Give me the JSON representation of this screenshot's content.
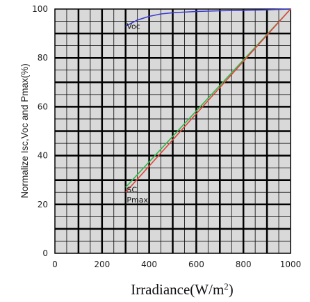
{
  "chart_data": {
    "type": "line",
    "title": "",
    "xlabel": "Irradiance(W/m",
    "xlabel_superscript": "2",
    "xlabel_suffix": ")",
    "ylabel": "Normalize Isc,Voc and Pmax(%)",
    "xlim": [
      0,
      1000
    ],
    "ylim": [
      0,
      100
    ],
    "xticks": [
      "0",
      "200",
      "400",
      "600",
      "800",
      "1000"
    ],
    "yticks": [
      "0",
      "20",
      "40",
      "60",
      "80",
      "100"
    ],
    "grid": true,
    "series": [
      {
        "name": "Voc",
        "color": "#3b3bd0",
        "x": [
          300,
          350,
          400,
          450,
          500,
          600,
          700,
          800,
          900,
          1000
        ],
        "y": [
          93,
          95.5,
          97,
          98,
          98.5,
          99,
          99.3,
          99.5,
          99.7,
          100
        ]
      },
      {
        "name": "SC",
        "color": "#2fb84a",
        "x": [
          300,
          1000
        ],
        "y": [
          27,
          100
        ]
      },
      {
        "name": "Pmax",
        "color": "#e0443a",
        "x": [
          300,
          1000
        ],
        "y": [
          25,
          100
        ]
      }
    ],
    "annotations": [
      {
        "text": "Voc",
        "x": 305,
        "y": 93
      },
      {
        "text": "SC",
        "x": 305,
        "y": 26
      },
      {
        "text": "Pmax",
        "x": 305,
        "y": 22
      }
    ]
  }
}
